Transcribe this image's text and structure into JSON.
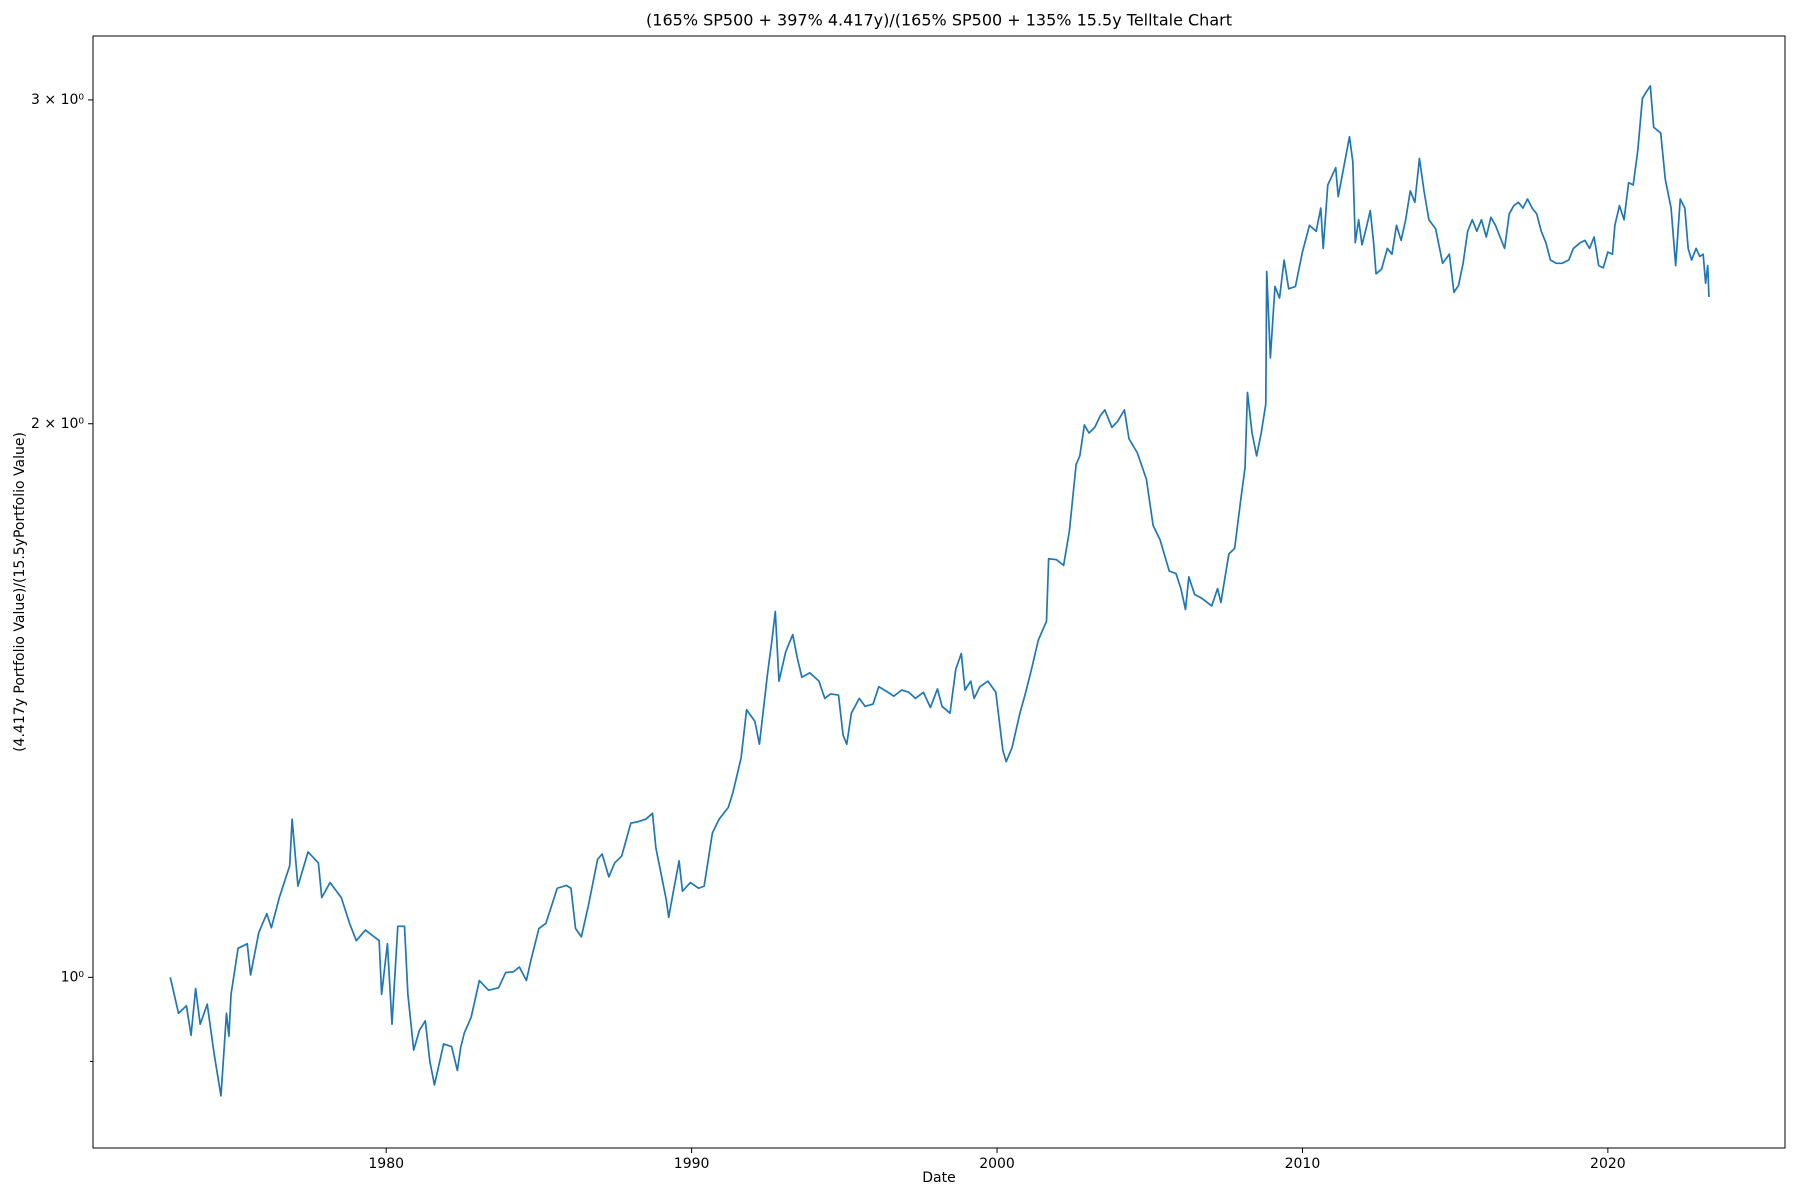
{
  "chart_data": {
    "type": "line",
    "title": "(165% SP500 + 397% 4.417y)/(165% SP500 + 135% 15.5y Telltale Chart",
    "x_label": "Date",
    "y_label": "(4.417y Portfolio Value)/(15.5yPortfolio Value)",
    "color": "#1f77b4",
    "log_y": true,
    "xlim": [
      1970.4,
      2025.8
    ],
    "xticks": [
      1980,
      1990,
      2000,
      2010,
      2020
    ],
    "ylim": [
      0.8076,
      3.25
    ],
    "yticks": [
      {
        "value": 1,
        "label": "10⁰"
      },
      {
        "value": 2,
        "label": "2 × 10⁰"
      },
      {
        "value": 3,
        "label": "3 × 10⁰"
      }
    ],
    "minor_yticks": [
      0.9
    ],
    "x": [
      1972.93,
      1973.2,
      1973.46,
      1973.61,
      1973.76,
      1973.91,
      1974.14,
      1974.36,
      1974.59,
      1974.77,
      1974.85,
      1974.92,
      1975.15,
      1975.45,
      1975.56,
      1975.83,
      1976.09,
      1976.24,
      1976.5,
      1976.84,
      1976.92,
      1977.11,
      1977.44,
      1977.78,
      1977.89,
      1978.16,
      1978.53,
      1978.8,
      1979.02,
      1979.32,
      1979.77,
      1979.85,
      1980.04,
      1980.19,
      1980.38,
      1980.6,
      1980.71,
      1980.9,
      1981.09,
      1981.28,
      1981.43,
      1981.58,
      1981.88,
      1982.14,
      1982.33,
      1982.44,
      1982.56,
      1982.78,
      1983.05,
      1983.35,
      1983.68,
      1983.91,
      1984.17,
      1984.36,
      1984.59,
      1984.74,
      1985.0,
      1985.23,
      1985.6,
      1985.9,
      1986.05,
      1986.2,
      1986.39,
      1986.62,
      1986.92,
      1987.07,
      1987.29,
      1987.48,
      1987.71,
      1988.01,
      1988.23,
      1988.5,
      1988.72,
      1988.83,
      1989.17,
      1989.25,
      1989.4,
      1989.59,
      1989.7,
      1989.96,
      1990.23,
      1990.41,
      1990.68,
      1990.9,
      1991.2,
      1991.35,
      1991.62,
      1991.8,
      1992.07,
      1992.22,
      1992.48,
      1992.63,
      1992.74,
      1992.86,
      1993.08,
      1993.31,
      1993.46,
      1993.61,
      1993.87,
      1994.17,
      1994.36,
      1994.55,
      1994.81,
      1994.96,
      1995.08,
      1995.23,
      1995.49,
      1995.68,
      1995.94,
      1996.13,
      1996.43,
      1996.62,
      1996.88,
      1997.11,
      1997.33,
      1997.59,
      1997.82,
      1998.05,
      1998.2,
      1998.46,
      1998.65,
      1998.83,
      1998.95,
      1999.14,
      1999.25,
      1999.44,
      1999.7,
      1999.96,
      2000.19,
      2000.3,
      2000.49,
      2000.75,
      2000.94,
      2001.13,
      2001.35,
      2001.62,
      2001.69,
      2001.95,
      2002.18,
      2002.37,
      2002.59,
      2002.71,
      2002.86,
      2003.01,
      2003.2,
      2003.38,
      2003.53,
      2003.76,
      2003.95,
      2004.17,
      2004.32,
      2004.59,
      2004.89,
      2005.11,
      2005.34,
      2005.64,
      2005.86,
      2006.02,
      2006.17,
      2006.28,
      2006.47,
      2006.69,
      2007.03,
      2007.22,
      2007.33,
      2007.59,
      2007.78,
      2007.97,
      2008.12,
      2008.2,
      2008.35,
      2008.5,
      2008.65,
      2008.8,
      2008.83,
      2008.95,
      2009.1,
      2009.25,
      2009.4,
      2009.55,
      2009.77,
      2010.0,
      2010.23,
      2010.45,
      2010.6,
      2010.68,
      2010.83,
      2011.09,
      2011.17,
      2011.35,
      2011.54,
      2011.65,
      2011.73,
      2011.84,
      2011.95,
      2012.11,
      2012.22,
      2012.33,
      2012.41,
      2012.59,
      2012.78,
      2012.93,
      2013.08,
      2013.23,
      2013.38,
      2013.53,
      2013.68,
      2013.83,
      2013.98,
      2014.14,
      2014.36,
      2014.59,
      2014.81,
      2014.96,
      2015.11,
      2015.26,
      2015.41,
      2015.56,
      2015.71,
      2015.86,
      2016.02,
      2016.17,
      2016.32,
      2016.47,
      2016.62,
      2016.77,
      2016.92,
      2017.07,
      2017.22,
      2017.37,
      2017.52,
      2017.67,
      2017.82,
      2017.97,
      2018.12,
      2018.31,
      2018.5,
      2018.72,
      2018.87,
      2019.1,
      2019.25,
      2019.4,
      2019.55,
      2019.7,
      2019.85,
      2020.0,
      2020.15,
      2020.23,
      2020.38,
      2020.53,
      2020.68,
      2020.83,
      2020.98,
      2021.13,
      2021.24,
      2021.39,
      2021.5,
      2021.73,
      2021.88,
      2022.07,
      2022.22,
      2022.37,
      2022.52,
      2022.63,
      2022.74,
      2022.89,
      2023.01,
      2023.12,
      2023.2,
      2023.27,
      2023.31
    ],
    "values": [
      1.0,
      0.956,
      0.965,
      0.93,
      0.986,
      0.943,
      0.967,
      0.91,
      0.862,
      0.956,
      0.929,
      0.979,
      1.037,
      1.043,
      1.003,
      1.058,
      1.083,
      1.064,
      1.105,
      1.15,
      1.219,
      1.121,
      1.17,
      1.154,
      1.105,
      1.126,
      1.105,
      1.07,
      1.047,
      1.061,
      1.047,
      0.979,
      1.043,
      0.943,
      1.066,
      1.066,
      0.979,
      0.913,
      0.936,
      0.947,
      0.9,
      0.874,
      0.92,
      0.917,
      0.89,
      0.916,
      0.933,
      0.951,
      0.996,
      0.984,
      0.987,
      1.006,
      1.007,
      1.013,
      0.996,
      1.022,
      1.063,
      1.07,
      1.118,
      1.122,
      1.118,
      1.063,
      1.052,
      1.094,
      1.159,
      1.167,
      1.134,
      1.154,
      1.164,
      1.213,
      1.215,
      1.219,
      1.228,
      1.176,
      1.102,
      1.078,
      1.113,
      1.157,
      1.114,
      1.126,
      1.118,
      1.121,
      1.198,
      1.219,
      1.237,
      1.26,
      1.316,
      1.398,
      1.378,
      1.339,
      1.46,
      1.525,
      1.581,
      1.449,
      1.503,
      1.536,
      1.492,
      1.456,
      1.464,
      1.449,
      1.418,
      1.426,
      1.424,
      1.354,
      1.339,
      1.392,
      1.418,
      1.404,
      1.408,
      1.439,
      1.429,
      1.422,
      1.433,
      1.429,
      1.418,
      1.429,
      1.402,
      1.435,
      1.404,
      1.392,
      1.471,
      1.5,
      1.433,
      1.449,
      1.418,
      1.439,
      1.449,
      1.429,
      1.329,
      1.31,
      1.333,
      1.392,
      1.429,
      1.471,
      1.525,
      1.562,
      1.689,
      1.687,
      1.675,
      1.749,
      1.901,
      1.921,
      1.997,
      1.977,
      1.991,
      2.02,
      2.035,
      1.991,
      2.006,
      2.035,
      1.963,
      1.929,
      1.866,
      1.761,
      1.729,
      1.663,
      1.658,
      1.627,
      1.585,
      1.651,
      1.615,
      1.608,
      1.592,
      1.627,
      1.599,
      1.699,
      1.711,
      1.813,
      1.893,
      2.08,
      1.977,
      1.921,
      1.977,
      2.05,
      2.42,
      2.172,
      2.375,
      2.341,
      2.455,
      2.368,
      2.375,
      2.48,
      2.564,
      2.545,
      2.62,
      2.491,
      2.697,
      2.756,
      2.658,
      2.756,
      2.865,
      2.776,
      2.509,
      2.582,
      2.502,
      2.564,
      2.612,
      2.509,
      2.413,
      2.427,
      2.491,
      2.473,
      2.564,
      2.516,
      2.582,
      2.677,
      2.639,
      2.788,
      2.677,
      2.582,
      2.553,
      2.445,
      2.473,
      2.358,
      2.378,
      2.445,
      2.545,
      2.582,
      2.545,
      2.582,
      2.527,
      2.59,
      2.564,
      2.527,
      2.491,
      2.601,
      2.628,
      2.639,
      2.62,
      2.65,
      2.62,
      2.601,
      2.545,
      2.509,
      2.455,
      2.445,
      2.445,
      2.455,
      2.491,
      2.509,
      2.516,
      2.491,
      2.527,
      2.438,
      2.431,
      2.48,
      2.473,
      2.564,
      2.628,
      2.582,
      2.705,
      2.697,
      2.816,
      3.005,
      3.027,
      3.053,
      2.899,
      2.878,
      2.716,
      2.62,
      2.438,
      2.65,
      2.62,
      2.491,
      2.455,
      2.491,
      2.466,
      2.473,
      2.385,
      2.438,
      2.344
    ]
  }
}
